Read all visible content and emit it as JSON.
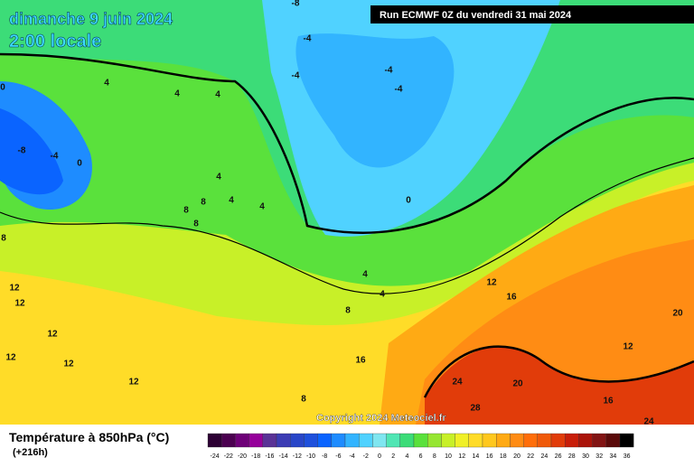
{
  "header": {
    "date": "dimanche 9 juin 2024",
    "time": "2:00 locale",
    "run": "Run ECMWF 0Z du vendredi 31 mai 2024"
  },
  "map": {
    "copyright": "Copyright 2024 Meteociel.fr",
    "contour_labels": [
      -8,
      -4,
      -4,
      -4,
      -4,
      4,
      4,
      4,
      -8,
      -4,
      0,
      0,
      4,
      8,
      4,
      4,
      8,
      8,
      8,
      0,
      4,
      4,
      12,
      16,
      12,
      12,
      8,
      12,
      12,
      12,
      16,
      12,
      12,
      20,
      24,
      20,
      28,
      16,
      8,
      24
    ]
  },
  "legend": {
    "title": "Température à 850hPa (°C)",
    "lead": "(+216h)",
    "ticks": [
      -24,
      -22,
      -20,
      -18,
      -16,
      -14,
      -12,
      -10,
      -8,
      -6,
      -4,
      -2,
      0,
      2,
      4,
      6,
      8,
      10,
      12,
      14,
      16,
      18,
      20,
      22,
      24,
      26,
      28,
      30,
      32,
      34,
      36
    ],
    "colors": [
      "#2d0034",
      "#4b0050",
      "#6e0078",
      "#96009b",
      "#5a3296",
      "#3c3cb4",
      "#2846c8",
      "#1e50dc",
      "#0a64ff",
      "#1e8cff",
      "#32b4ff",
      "#50d2ff",
      "#7fe6f0",
      "#50e6b4",
      "#3cdc78",
      "#5ae13c",
      "#96e632",
      "#c8f028",
      "#f0f028",
      "#ffdc28",
      "#ffc81e",
      "#ffaa14",
      "#ff8c14",
      "#ff6e0a",
      "#f05a0a",
      "#e13c0a",
      "#c81e0a",
      "#aa140a",
      "#821414",
      "#5a0a0a",
      "#000000"
    ]
  }
}
